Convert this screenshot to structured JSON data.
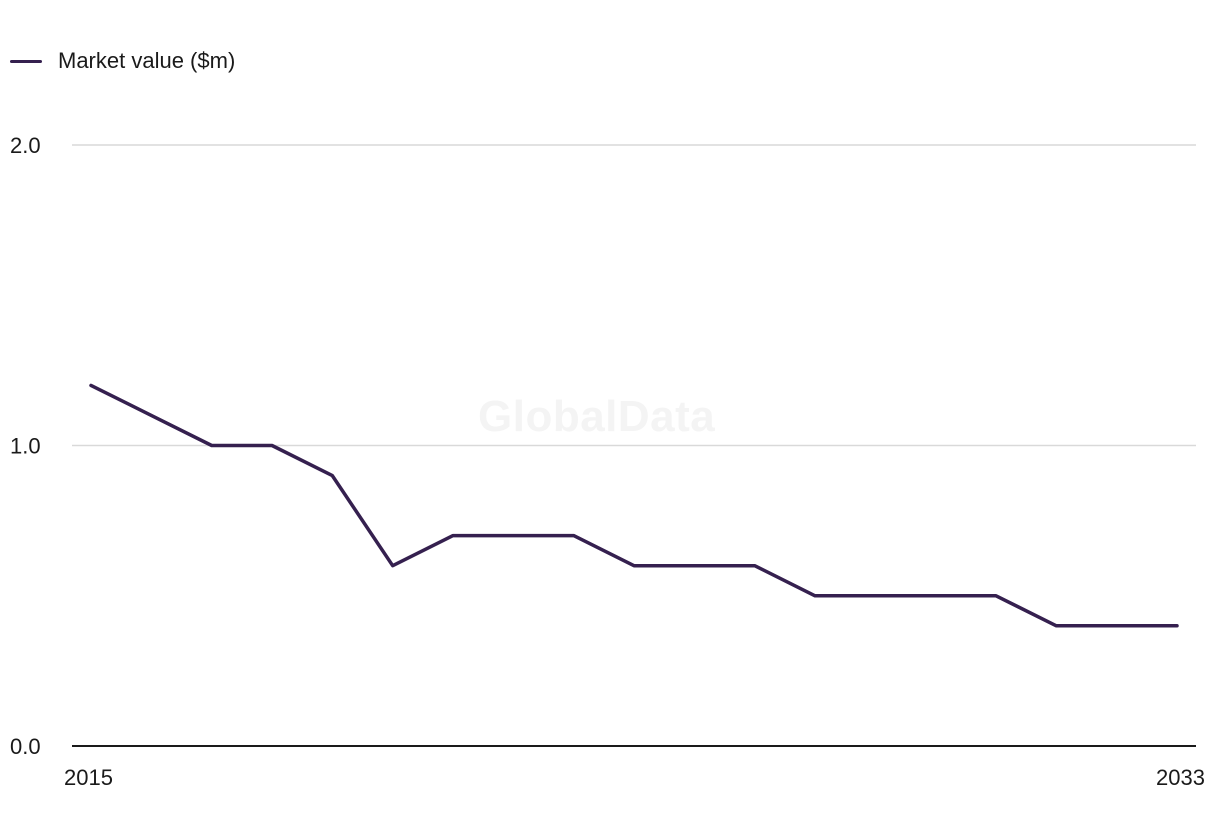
{
  "watermark": "GlobalData",
  "colors": {
    "series": "#35204f",
    "grid": "#d9d9d9",
    "axis": "#1a1a1a",
    "watermark": "#f4f4f4"
  },
  "chart_data": {
    "type": "line",
    "title": "",
    "xlabel": "",
    "ylabel": "",
    "legend_position": "top-left",
    "grid": true,
    "x": [
      2015,
      2016,
      2017,
      2018,
      2019,
      2020,
      2021,
      2022,
      2023,
      2024,
      2025,
      2026,
      2027,
      2028,
      2029,
      2030,
      2031,
      2032,
      2033
    ],
    "series": [
      {
        "name": "Market value ($m)",
        "values": [
          1.2,
          1.1,
          1.0,
          1.0,
          0.9,
          0.6,
          0.7,
          0.7,
          0.7,
          0.6,
          0.6,
          0.6,
          0.5,
          0.5,
          0.5,
          0.5,
          0.4,
          0.4,
          0.4
        ]
      }
    ],
    "xlim": [
      2015,
      2033
    ],
    "ylim": [
      0,
      2
    ],
    "y_ticks": [
      "0.0",
      "1.0",
      "2.0"
    ],
    "y_tick_values": [
      0,
      1,
      2
    ],
    "x_ticks": [
      "2015",
      "2033"
    ],
    "x_tick_values": [
      2015,
      2033
    ]
  }
}
